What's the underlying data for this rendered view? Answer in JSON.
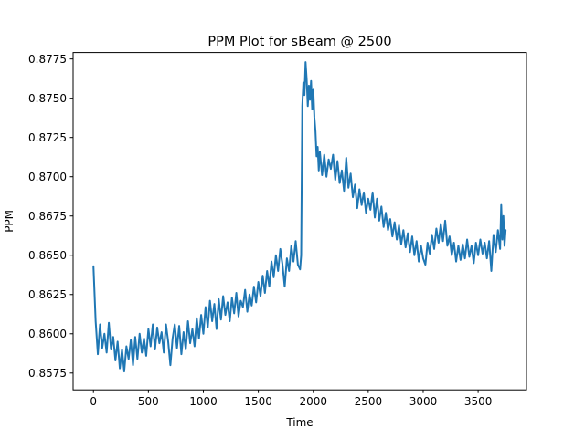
{
  "chart_data": {
    "type": "line",
    "title": "PPM Plot for sBeam @ 2500",
    "xlabel": "Time",
    "ylabel": "PPM",
    "xlim": [
      -185,
      3940
    ],
    "ylim": [
      0.85643,
      0.87791
    ],
    "xticks": [
      0,
      500,
      1000,
      1500,
      2000,
      2500,
      3000,
      3500
    ],
    "xtick_labels": [
      "0",
      "500",
      "1000",
      "1500",
      "2000",
      "2500",
      "3000",
      "3500"
    ],
    "yticks": [
      0.8575,
      0.86,
      0.8625,
      0.865,
      0.8675,
      0.87,
      0.8725,
      0.875,
      0.8775
    ],
    "ytick_labels": [
      "0.8575",
      "0.8600",
      "0.8625",
      "0.8650",
      "0.8675",
      "0.8700",
      "0.8725",
      "0.8750",
      "0.8775"
    ],
    "grid": false,
    "series": [
      {
        "color": "#1f77b4",
        "points": [
          [
            0,
            0.8643
          ],
          [
            20,
            0.8608
          ],
          [
            40,
            0.8587
          ],
          [
            60,
            0.8606
          ],
          [
            80,
            0.8591
          ],
          [
            100,
            0.86
          ],
          [
            120,
            0.8588
          ],
          [
            140,
            0.8607
          ],
          [
            160,
            0.859
          ],
          [
            180,
            0.8598
          ],
          [
            200,
            0.8583
          ],
          [
            220,
            0.8595
          ],
          [
            240,
            0.8578
          ],
          [
            260,
            0.859
          ],
          [
            280,
            0.8576
          ],
          [
            300,
            0.8592
          ],
          [
            320,
            0.8584
          ],
          [
            340,
            0.8596
          ],
          [
            360,
            0.858
          ],
          [
            380,
            0.8598
          ],
          [
            400,
            0.8584
          ],
          [
            420,
            0.86
          ],
          [
            440,
            0.8588
          ],
          [
            460,
            0.8597
          ],
          [
            480,
            0.8586
          ],
          [
            500,
            0.8603
          ],
          [
            520,
            0.8592
          ],
          [
            540,
            0.8606
          ],
          [
            560,
            0.859
          ],
          [
            580,
            0.8604
          ],
          [
            600,
            0.8594
          ],
          [
            620,
            0.8601
          ],
          [
            640,
            0.8588
          ],
          [
            660,
            0.8606
          ],
          [
            680,
            0.8595
          ],
          [
            700,
            0.858
          ],
          [
            720,
            0.8597
          ],
          [
            740,
            0.8606
          ],
          [
            760,
            0.8591
          ],
          [
            780,
            0.8605
          ],
          [
            800,
            0.8587
          ],
          [
            820,
            0.8601
          ],
          [
            840,
            0.859
          ],
          [
            860,
            0.8608
          ],
          [
            880,
            0.8594
          ],
          [
            900,
            0.8603
          ],
          [
            920,
            0.8592
          ],
          [
            940,
            0.861
          ],
          [
            960,
            0.8597
          ],
          [
            980,
            0.8612
          ],
          [
            1000,
            0.86
          ],
          [
            1020,
            0.8617
          ],
          [
            1040,
            0.8604
          ],
          [
            1060,
            0.8621
          ],
          [
            1080,
            0.8608
          ],
          [
            1100,
            0.8619
          ],
          [
            1120,
            0.8603
          ],
          [
            1140,
            0.8622
          ],
          [
            1160,
            0.8609
          ],
          [
            1180,
            0.8624
          ],
          [
            1200,
            0.8612
          ],
          [
            1220,
            0.862
          ],
          [
            1240,
            0.8608
          ],
          [
            1260,
            0.8623
          ],
          [
            1280,
            0.8613
          ],
          [
            1300,
            0.8626
          ],
          [
            1320,
            0.8611
          ],
          [
            1340,
            0.8621
          ],
          [
            1360,
            0.8617
          ],
          [
            1380,
            0.8628
          ],
          [
            1400,
            0.8614
          ],
          [
            1420,
            0.8625
          ],
          [
            1440,
            0.8618
          ],
          [
            1460,
            0.863
          ],
          [
            1480,
            0.862
          ],
          [
            1500,
            0.8633
          ],
          [
            1520,
            0.8624
          ],
          [
            1540,
            0.8637
          ],
          [
            1560,
            0.8626
          ],
          [
            1580,
            0.864
          ],
          [
            1600,
            0.863
          ],
          [
            1620,
            0.8646
          ],
          [
            1640,
            0.8636
          ],
          [
            1660,
            0.865
          ],
          [
            1680,
            0.864
          ],
          [
            1700,
            0.8654
          ],
          [
            1720,
            0.8644
          ],
          [
            1740,
            0.863
          ],
          [
            1760,
            0.8648
          ],
          [
            1780,
            0.864
          ],
          [
            1800,
            0.8656
          ],
          [
            1820,
            0.8646
          ],
          [
            1840,
            0.8659
          ],
          [
            1860,
            0.8644
          ],
          [
            1880,
            0.8641
          ],
          [
            1890,
            0.865
          ],
          [
            1900,
            0.8745
          ],
          [
            1910,
            0.876
          ],
          [
            1920,
            0.8752
          ],
          [
            1930,
            0.8773
          ],
          [
            1940,
            0.8762
          ],
          [
            1950,
            0.8745
          ],
          [
            1960,
            0.8758
          ],
          [
            1970,
            0.8749
          ],
          [
            1980,
            0.8761
          ],
          [
            1990,
            0.8743
          ],
          [
            2000,
            0.8756
          ],
          [
            2010,
            0.8738
          ],
          [
            2020,
            0.8729
          ],
          [
            2030,
            0.8713
          ],
          [
            2040,
            0.8719
          ],
          [
            2050,
            0.8704
          ],
          [
            2060,
            0.8716
          ],
          [
            2080,
            0.8701
          ],
          [
            2100,
            0.8714
          ],
          [
            2120,
            0.87
          ],
          [
            2140,
            0.8711
          ],
          [
            2160,
            0.8705
          ],
          [
            2180,
            0.8714
          ],
          [
            2200,
            0.8698
          ],
          [
            2220,
            0.871
          ],
          [
            2240,
            0.8696
          ],
          [
            2260,
            0.8704
          ],
          [
            2280,
            0.8691
          ],
          [
            2300,
            0.8712
          ],
          [
            2320,
            0.8693
          ],
          [
            2340,
            0.8702
          ],
          [
            2360,
            0.8687
          ],
          [
            2380,
            0.8695
          ],
          [
            2400,
            0.868
          ],
          [
            2420,
            0.8692
          ],
          [
            2440,
            0.8682
          ],
          [
            2460,
            0.869
          ],
          [
            2480,
            0.8677
          ],
          [
            2500,
            0.8686
          ],
          [
            2520,
            0.8679
          ],
          [
            2540,
            0.869
          ],
          [
            2560,
            0.8674
          ],
          [
            2580,
            0.8686
          ],
          [
            2600,
            0.8672
          ],
          [
            2620,
            0.8681
          ],
          [
            2640,
            0.8668
          ],
          [
            2660,
            0.8677
          ],
          [
            2680,
            0.8666
          ],
          [
            2700,
            0.8673
          ],
          [
            2720,
            0.8662
          ],
          [
            2740,
            0.8671
          ],
          [
            2760,
            0.866
          ],
          [
            2780,
            0.8669
          ],
          [
            2800,
            0.8657
          ],
          [
            2820,
            0.8666
          ],
          [
            2840,
            0.8655
          ],
          [
            2860,
            0.8664
          ],
          [
            2880,
            0.8652
          ],
          [
            2900,
            0.8662
          ],
          [
            2920,
            0.865
          ],
          [
            2940,
            0.8659
          ],
          [
            2960,
            0.8646
          ],
          [
            2980,
            0.8656
          ],
          [
            3000,
            0.8648
          ],
          [
            3020,
            0.8644
          ],
          [
            3040,
            0.8658
          ],
          [
            3060,
            0.8651
          ],
          [
            3080,
            0.8663
          ],
          [
            3100,
            0.8654
          ],
          [
            3120,
            0.8667
          ],
          [
            3140,
            0.8658
          ],
          [
            3160,
            0.867
          ],
          [
            3180,
            0.8659
          ],
          [
            3200,
            0.8672
          ],
          [
            3220,
            0.8656
          ],
          [
            3240,
            0.8662
          ],
          [
            3260,
            0.865
          ],
          [
            3280,
            0.8658
          ],
          [
            3300,
            0.8646
          ],
          [
            3320,
            0.8656
          ],
          [
            3340,
            0.8647
          ],
          [
            3360,
            0.8657
          ],
          [
            3380,
            0.8648
          ],
          [
            3400,
            0.866
          ],
          [
            3420,
            0.8649
          ],
          [
            3440,
            0.8656
          ],
          [
            3460,
            0.8645
          ],
          [
            3480,
            0.8658
          ],
          [
            3500,
            0.865
          ],
          [
            3520,
            0.866
          ],
          [
            3540,
            0.8651
          ],
          [
            3560,
            0.8658
          ],
          [
            3580,
            0.8648
          ],
          [
            3600,
            0.8659
          ],
          [
            3620,
            0.864
          ],
          [
            3640,
            0.8663
          ],
          [
            3660,
            0.8652
          ],
          [
            3680,
            0.8666
          ],
          [
            3700,
            0.8654
          ],
          [
            3710,
            0.8682
          ],
          [
            3720,
            0.866
          ],
          [
            3730,
            0.8675
          ],
          [
            3740,
            0.8656
          ],
          [
            3750,
            0.8666
          ]
        ]
      }
    ]
  }
}
